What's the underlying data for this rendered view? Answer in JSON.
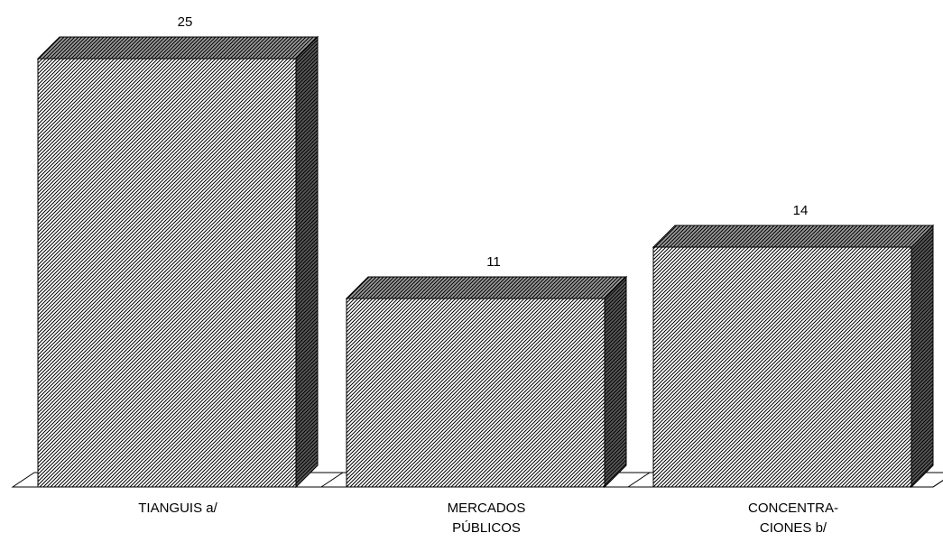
{
  "chart_data": {
    "type": "bar",
    "style": "3d-hatched",
    "categories": [
      "TIANGUIS a/",
      "MERCADOS\nPÚBLICOS",
      "CONCENTRA-\nCIONES b/"
    ],
    "values": [
      25,
      11,
      14
    ],
    "data_labels": [
      "25",
      "11",
      "14"
    ],
    "ylim": [
      0,
      25
    ],
    "grid": false,
    "legend": "none"
  }
}
